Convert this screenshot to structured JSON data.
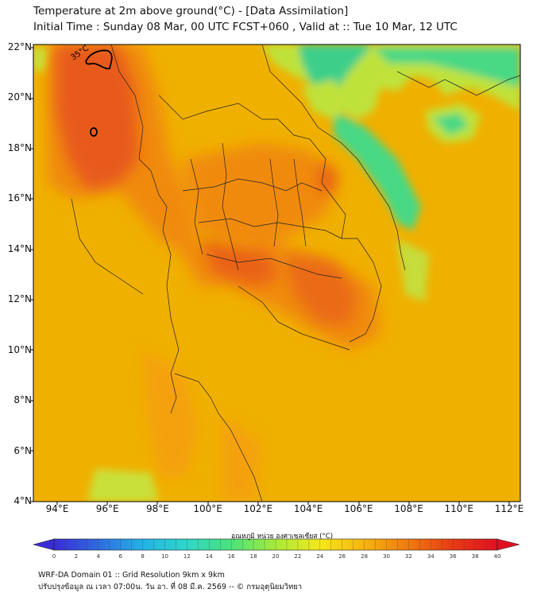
{
  "title": {
    "line1": "Temperature at 2m above ground(°C) - [Data Assimilation]",
    "line2": "Initial Time : Sunday 08 Mar, 00 UTC FCST+060 , Valid at :: Tue 10 Mar, 12 UTC"
  },
  "map": {
    "lat_labels": [
      "22°N",
      "20°N",
      "18°N",
      "16°N",
      "14°N",
      "12°N",
      "10°N",
      "8°N",
      "6°N",
      "4°N"
    ],
    "lon_labels": [
      "94°E",
      "96°E",
      "98°E",
      "100°E",
      "102°E",
      "104°E",
      "106°E",
      "108°E",
      "110°E",
      "112°E"
    ],
    "contour_label": "35°C",
    "colors": {
      "background": "#f0b000",
      "hot": "#e85a1c",
      "warm": "#f08a10",
      "cool": "#3ccf8a",
      "mild": "#bfe23a"
    }
  },
  "colorbar": {
    "title": "อุณหภูมิ หน่วย องศาเซลเซียส (°C)",
    "ticks": [
      "0",
      "2",
      "4",
      "6",
      "8",
      "10",
      "12",
      "14",
      "16",
      "18",
      "20",
      "22",
      "24",
      "26",
      "28",
      "30",
      "32",
      "34",
      "36",
      "38",
      "40"
    ],
    "stops": [
      "#3a2bd6",
      "#2f6be0",
      "#22b3e6",
      "#2fd6c8",
      "#4be37a",
      "#a8ea3a",
      "#f5e81a",
      "#f6b30f",
      "#f07a0f",
      "#e83a14",
      "#e01020"
    ]
  },
  "footer": {
    "line1": "WRF-DA Domain 01 :: Grid Resolution 9km x 9km",
    "line2": "ปรับปรุงข้อมูล ณ เวลา 07:00น. วัน อา. ที่ 08 มี.ค. 2569 -- © กรมอุตุนิยมวิทยา"
  }
}
